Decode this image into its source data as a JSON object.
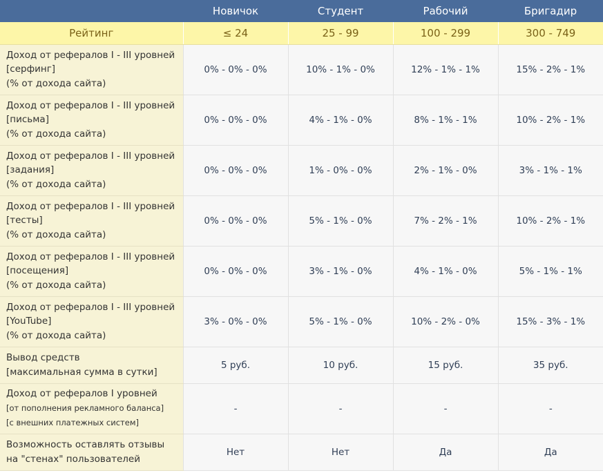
{
  "header": {
    "columns": [
      "",
      "Новичок",
      "Студент",
      "Рабочий",
      "Бригадир"
    ]
  },
  "rating": {
    "label": "Рейтинг",
    "values": [
      "≤ 24",
      "25 - 99",
      "100 - 299",
      "300 - 749"
    ]
  },
  "rows": [
    {
      "label": [
        "Доход от рефералов I - III уровней",
        "[серфинг]",
        "(% от дохода сайта)"
      ],
      "values": [
        "0% - 0% - 0%",
        "10% - 1% - 0%",
        "12% - 1% - 1%",
        "15% - 2% - 1%"
      ]
    },
    {
      "label": [
        "Доход от рефералов I - III уровней",
        "[письма]",
        "(% от дохода сайта)"
      ],
      "values": [
        "0% - 0% - 0%",
        "4% - 1% - 0%",
        "8% - 1% - 1%",
        "10% - 2% - 1%"
      ]
    },
    {
      "label": [
        "Доход от рефералов I - III уровней",
        "[задания]",
        "(% от дохода сайта)"
      ],
      "values": [
        "0% - 0% - 0%",
        "1% - 0% - 0%",
        "2% - 1% - 0%",
        "3% - 1% - 1%"
      ]
    },
    {
      "label": [
        "Доход от рефералов I - III уровней",
        "[тесты]",
        "(% от дохода сайта)"
      ],
      "values": [
        "0% - 0% - 0%",
        "5% - 1% - 0%",
        "7% - 2% - 1%",
        "10% - 2% - 1%"
      ]
    },
    {
      "label": [
        "Доход от рефералов I - III уровней",
        "[посещения]",
        "(% от дохода сайта)"
      ],
      "values": [
        "0% - 0% - 0%",
        "3% - 1% - 0%",
        "4% - 1% - 0%",
        "5% - 1% - 1%"
      ]
    },
    {
      "label": [
        "Доход от рефералов I - III уровней",
        "[YouTube]",
        "(% от дохода сайта)"
      ],
      "values": [
        "3% - 0% - 0%",
        "5% - 1% - 0%",
        "10% - 2% - 0%",
        "15% - 3% - 1%"
      ]
    },
    {
      "label": [
        "Вывод средств",
        "[максимальная сумма в сутки]"
      ],
      "values": [
        "5 руб.",
        "10 руб.",
        "15 руб.",
        "35 руб."
      ]
    },
    {
      "label": [
        "Доход от рефералов I уровней",
        "[от пополнения рекламного баланса]",
        "[с внешних платежных систем]"
      ],
      "values": [
        "-",
        "-",
        "-",
        "-"
      ]
    },
    {
      "label": [
        "Возможность оставлять отзывы",
        "на \"стенах\" пользователей"
      ],
      "values": [
        "Нет",
        "Нет",
        "Да",
        "Да"
      ]
    }
  ]
}
